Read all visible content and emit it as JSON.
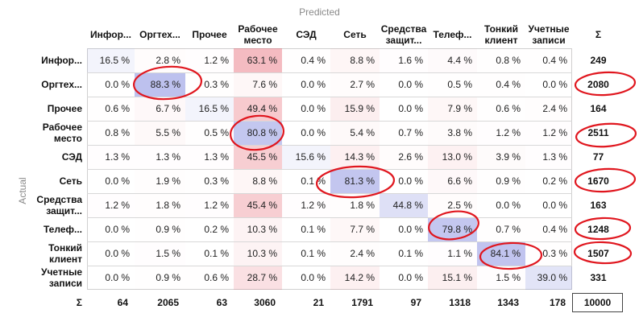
{
  "predicted_label": "Predicted",
  "actual_label": "Actual",
  "sigma": "Σ",
  "columns": [
    "Инфор...",
    "Оргтех...",
    "Прочее",
    "Рабочее место",
    "СЭД",
    "Сеть",
    "Средства защит...",
    "Телеф...",
    "Тонкий клиент",
    "Учетные записи"
  ],
  "rows": [
    {
      "label": "Инфор...",
      "values": [
        "16.5 %",
        "2.8 %",
        "1.2 %",
        "63.1 %",
        "0.4 %",
        "8.8 %",
        "1.6 %",
        "4.4 %",
        "0.8 %",
        "0.4 %"
      ],
      "sum": "249"
    },
    {
      "label": "Оргтех...",
      "values": [
        "0.0 %",
        "88.3 %",
        "0.3 %",
        "7.6 %",
        "0.0 %",
        "2.7 %",
        "0.0 %",
        "0.5 %",
        "0.4 %",
        "0.0 %"
      ],
      "sum": "2080"
    },
    {
      "label": "Прочее",
      "values": [
        "0.6 %",
        "6.7 %",
        "16.5 %",
        "49.4 %",
        "0.0 %",
        "15.9 %",
        "0.0 %",
        "7.9 %",
        "0.6 %",
        "2.4 %"
      ],
      "sum": "164"
    },
    {
      "label": "Рабочее место",
      "values": [
        "0.8 %",
        "5.5 %",
        "0.5 %",
        "80.8 %",
        "0.0 %",
        "5.4 %",
        "0.7 %",
        "3.8 %",
        "1.2 %",
        "1.2 %"
      ],
      "sum": "2511"
    },
    {
      "label": "СЭД",
      "values": [
        "1.3 %",
        "1.3 %",
        "1.3 %",
        "45.5 %",
        "15.6 %",
        "14.3 %",
        "2.6 %",
        "13.0 %",
        "3.9 %",
        "1.3 %"
      ],
      "sum": "77"
    },
    {
      "label": "Сеть",
      "values": [
        "0.0 %",
        "1.9 %",
        "0.3 %",
        "8.8 %",
        "0.1 %",
        "81.3 %",
        "0.0 %",
        "6.6 %",
        "0.9 %",
        "0.2 %"
      ],
      "sum": "1670"
    },
    {
      "label": "Средства защит...",
      "values": [
        "1.2 %",
        "1.8 %",
        "1.2 %",
        "45.4 %",
        "1.2 %",
        "1.8 %",
        "44.8 %",
        "2.5 %",
        "0.0 %",
        "0.0 %"
      ],
      "sum": "163"
    },
    {
      "label": "Телеф...",
      "values": [
        "0.0 %",
        "0.9 %",
        "0.2 %",
        "10.3 %",
        "0.1 %",
        "7.7 %",
        "0.0 %",
        "79.8 %",
        "0.7 %",
        "0.4 %"
      ],
      "sum": "1248"
    },
    {
      "label": "Тонкий клиент",
      "values": [
        "0.0 %",
        "1.5 %",
        "0.1 %",
        "10.3 %",
        "0.1 %",
        "2.4 %",
        "0.1 %",
        "1.1 %",
        "84.1 %",
        "0.3 %"
      ],
      "sum": "1507"
    },
    {
      "label": "Учетные записи",
      "values": [
        "0.0 %",
        "0.9 %",
        "0.6 %",
        "28.7 %",
        "0.0 %",
        "14.2 %",
        "0.0 %",
        "15.1 %",
        "1.5 %",
        "39.0 %"
      ],
      "sum": "331"
    }
  ],
  "col_sums": [
    "64",
    "2065",
    "63",
    "3060",
    "21",
    "1791",
    "97",
    "1318",
    "1343",
    "178"
  ],
  "total": "10000",
  "colors": {
    "diagonal": "#9aa0e6",
    "offdiag": "#e03a4a",
    "annotation": "#e0161e",
    "axis_title": "#8a8a8a"
  }
}
